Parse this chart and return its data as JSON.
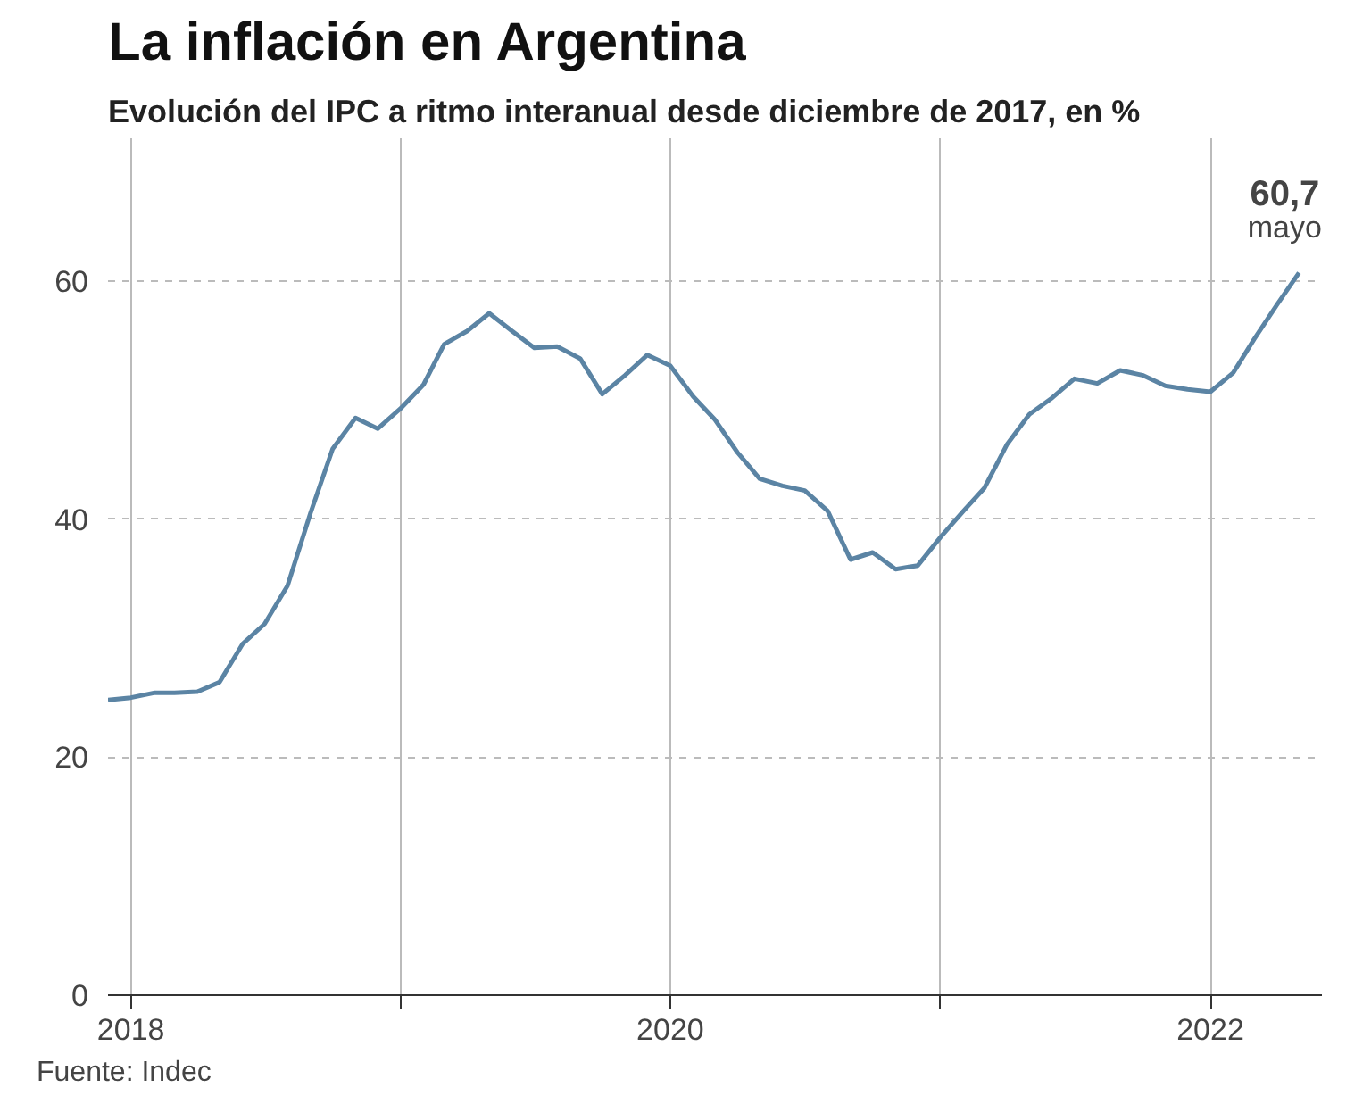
{
  "chart_data": {
    "type": "line",
    "title": "La inflación en Argentina",
    "subtitle": "Evolución del IPC a ritmo interanual desde diciembre de 2017, en %",
    "x": [
      "2017-12",
      "2018-01",
      "2018-02",
      "2018-03",
      "2018-04",
      "2018-05",
      "2018-06",
      "2018-07",
      "2018-08",
      "2018-09",
      "2018-10",
      "2018-11",
      "2018-12",
      "2019-01",
      "2019-02",
      "2019-03",
      "2019-04",
      "2019-05",
      "2019-06",
      "2019-07",
      "2019-08",
      "2019-09",
      "2019-10",
      "2019-11",
      "2019-12",
      "2020-01",
      "2020-02",
      "2020-03",
      "2020-04",
      "2020-05",
      "2020-06",
      "2020-07",
      "2020-08",
      "2020-09",
      "2020-10",
      "2020-11",
      "2020-12",
      "2021-01",
      "2021-02",
      "2021-03",
      "2021-04",
      "2021-05",
      "2021-06",
      "2021-07",
      "2021-08",
      "2021-09",
      "2021-10",
      "2021-11",
      "2021-12",
      "2022-01",
      "2022-02",
      "2022-03",
      "2022-04",
      "2022-05"
    ],
    "series": [
      {
        "color": "#5b84a4",
        "values": [
          24.8,
          25.0,
          25.4,
          25.4,
          25.5,
          26.3,
          29.5,
          31.2,
          34.4,
          40.5,
          45.9,
          48.5,
          47.6,
          49.3,
          51.3,
          54.7,
          55.8,
          57.3,
          55.8,
          54.4,
          54.5,
          53.5,
          50.5,
          52.1,
          53.8,
          52.9,
          50.3,
          48.4,
          45.6,
          43.4,
          42.8,
          42.4,
          40.7,
          36.6,
          37.2,
          35.8,
          36.1,
          38.5,
          40.7,
          42.6,
          46.3,
          48.8,
          50.2,
          51.8,
          51.4,
          52.5,
          52.1,
          51.2,
          50.9,
          50.7,
          52.3,
          55.1,
          58.0,
          60.7
        ]
      }
    ],
    "xlim": [
      "2017-12",
      "2022-06"
    ],
    "xticks": [
      {
        "value": "2018-01",
        "label": "2018"
      },
      {
        "value": "2019-01",
        "label": null
      },
      {
        "value": "2020-01",
        "label": "2020"
      },
      {
        "value": "2021-01",
        "label": null
      },
      {
        "value": "2022-01",
        "label": "2022"
      }
    ],
    "ylim": [
      0,
      72
    ],
    "yticks": [
      0,
      20,
      40,
      60
    ],
    "grid": true,
    "marker": "none",
    "line_style": "solid",
    "annotations": [
      {
        "text": "60,7",
        "x": "2022-05",
        "y": 60.7
      },
      {
        "text": "mayo",
        "x": "2022-05",
        "y": 60.7
      },
      "Fuente: Indec"
    ]
  }
}
